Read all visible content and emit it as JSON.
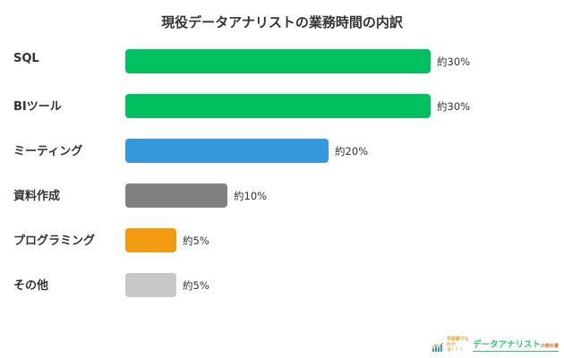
{
  "chart_data": {
    "type": "bar",
    "orientation": "horizontal",
    "title": "現役データアナリストの業務時間の内訳",
    "categories": [
      "SQL",
      "BIツール",
      "ミーティング",
      "資料作成",
      "プログラミング",
      "その他"
    ],
    "values": [
      30,
      30,
      20,
      10,
      5,
      5
    ],
    "value_labels": [
      "約30%",
      "約30%",
      "約20%",
      "約10%",
      "約5%",
      "約5%"
    ],
    "colors": [
      "#00c060",
      "#00c060",
      "#3498db",
      "#808080",
      "#f39c12",
      "#c8c8c8"
    ],
    "unit": "%",
    "xlabel": "",
    "ylabel": "",
    "grid": false,
    "legend": null,
    "xlim": [
      0,
      30
    ]
  },
  "rows": [
    {
      "label": "SQL",
      "value_label": "約30%"
    },
    {
      "label": "BIツール",
      "value_label": "約30%"
    },
    {
      "label": "ミーティング",
      "value_label": "約20%"
    },
    {
      "label": "資料作成",
      "value_label": "約10%"
    },
    {
      "label": "プログラミング",
      "value_label": "約5%"
    },
    {
      "label": "その他",
      "value_label": "約5%"
    }
  ],
  "logo": {
    "small_text": "未経験でもわかる！！！",
    "main_text": "データアナリスト",
    "sub_text": "の教科書"
  }
}
